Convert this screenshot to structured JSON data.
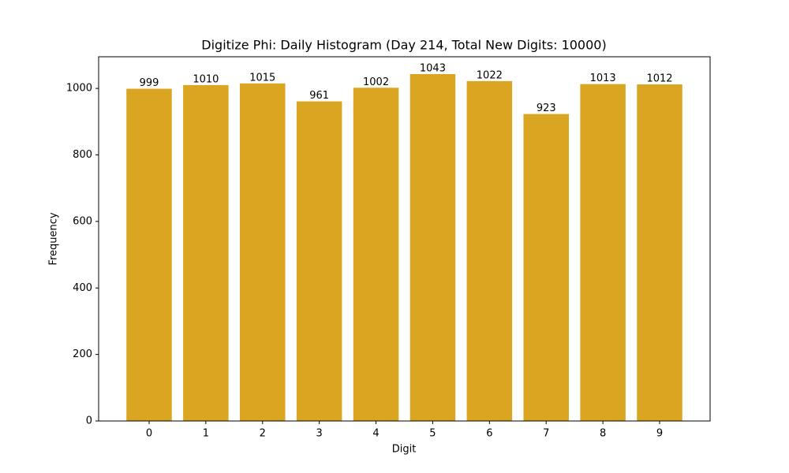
{
  "chart_data": {
    "type": "bar",
    "title": "Digitize Phi: Daily Histogram (Day 214, Total New Digits: 10000)",
    "x_label": "Digit",
    "y_label": "Frequency",
    "categories": [
      "0",
      "1",
      "2",
      "3",
      "4",
      "5",
      "6",
      "7",
      "8",
      "9"
    ],
    "values": [
      999,
      1010,
      1015,
      961,
      1002,
      1043,
      1022,
      923,
      1013,
      1012
    ],
    "color": "#daa520",
    "ylim": [
      0,
      1095.15
    ],
    "yticks": [
      0,
      200,
      400,
      600,
      800,
      1000
    ],
    "grid": false
  }
}
